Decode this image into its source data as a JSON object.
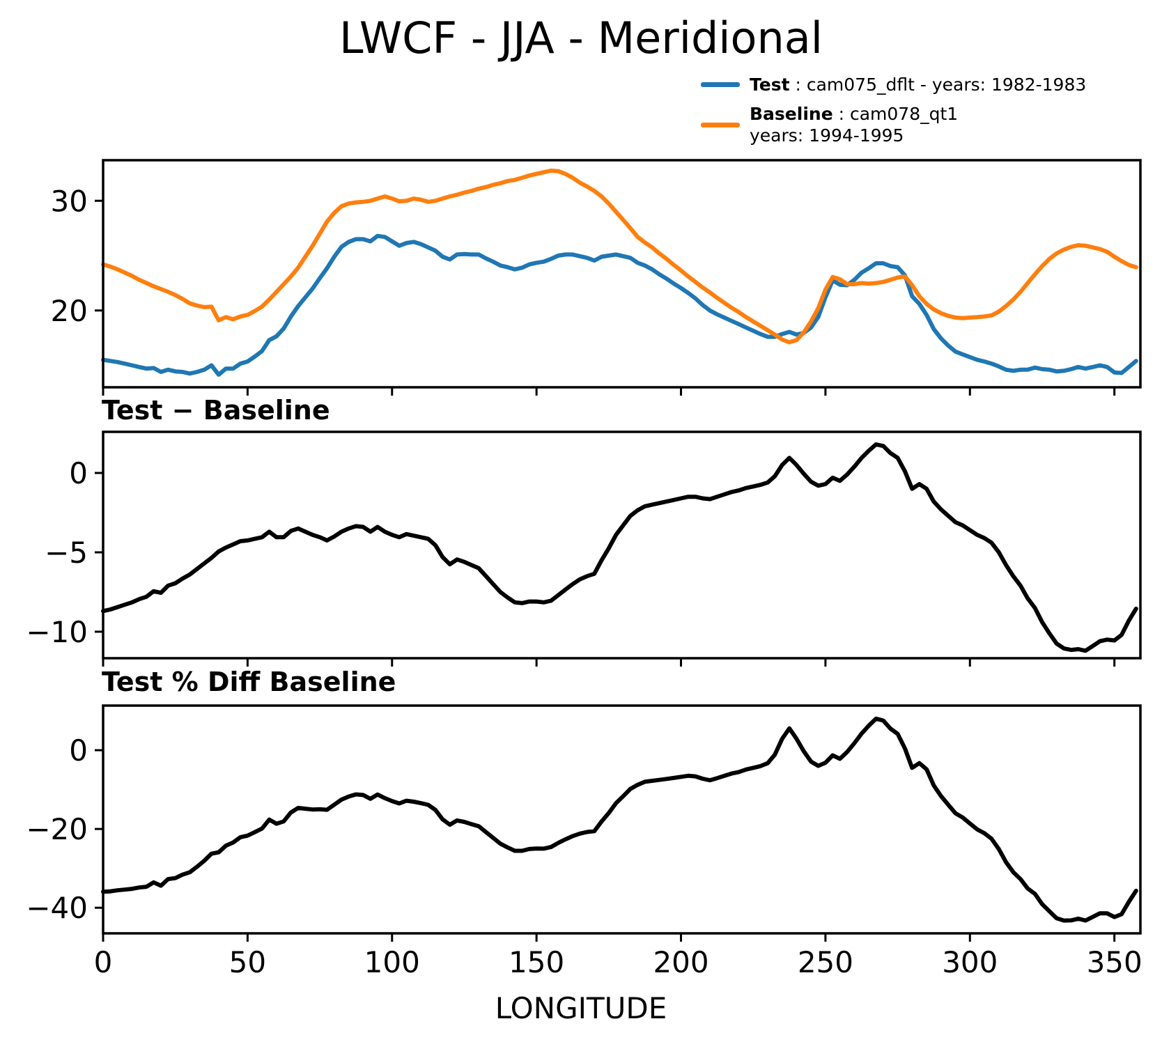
{
  "legend": {
    "entries": [
      {
        "name": "Test",
        "sep": " : ",
        "desc": "cam075_dflt - years: 1982-1983",
        "desc2": "",
        "color": "#1f77b4"
      },
      {
        "name": "Baseline",
        "sep": " : ",
        "desc": "cam078_qt1",
        "desc2": "years: 1994-1995",
        "color": "#ff7f0e"
      }
    ]
  },
  "chart_data": {
    "type": "line",
    "title": "LWCF - JJA - Meridional",
    "xlabel": "LONGITUDE",
    "grid": false,
    "legend_position": "top-right, outside axes",
    "xlim": [
      0,
      359
    ],
    "x_ticks": [
      0,
      50,
      100,
      150,
      200,
      250,
      300,
      350
    ],
    "x_tick_labels": [
      "0",
      "50",
      "100",
      "150",
      "200",
      "250",
      "300",
      "350"
    ],
    "x": [
      0,
      2.5,
      5,
      7.5,
      10,
      12.5,
      15,
      17.5,
      20,
      22.5,
      25,
      27.5,
      30,
      32.5,
      35,
      37.5,
      40,
      42.5,
      45,
      47.5,
      50,
      52.5,
      55,
      57.5,
      60,
      62.5,
      65,
      67.5,
      70,
      72.5,
      75,
      77.5,
      80,
      82.5,
      85,
      87.5,
      90,
      92.5,
      95,
      97.5,
      100,
      102.5,
      105,
      107.5,
      110,
      112.5,
      115,
      117.5,
      120,
      122.5,
      125,
      127.5,
      130,
      132.5,
      135,
      137.5,
      140,
      142.5,
      145,
      147.5,
      150,
      152.5,
      155,
      157.5,
      160,
      162.5,
      165,
      167.5,
      170,
      172.5,
      175,
      177.5,
      180,
      182.5,
      185,
      187.5,
      190,
      192.5,
      195,
      197.5,
      200,
      202.5,
      205,
      207.5,
      210,
      212.5,
      215,
      217.5,
      220,
      222.5,
      225,
      227.5,
      230,
      232.5,
      235,
      237.5,
      240,
      242.5,
      245,
      247.5,
      250,
      252.5,
      255,
      257.5,
      260,
      262.5,
      265,
      267.5,
      270,
      272.5,
      275,
      277.5,
      280,
      282.5,
      285,
      287.5,
      290,
      292.5,
      295,
      297.5,
      300,
      302.5,
      305,
      307.5,
      310,
      312.5,
      315,
      317.5,
      320,
      322.5,
      325,
      327.5,
      330,
      332.5,
      335,
      337.5,
      340,
      342.5,
      345,
      347.5,
      350,
      352.5,
      355,
      357.5
    ],
    "series": [
      {
        "name": "Test",
        "label": "cam075_dflt - years: 1982-1983",
        "color": "#1f77b4",
        "values": [
          15.5,
          15.4,
          15.3,
          15.15,
          15.0,
          14.85,
          14.7,
          14.75,
          14.4,
          14.6,
          14.45,
          14.4,
          14.25,
          14.4,
          14.6,
          15.0,
          14.15,
          14.7,
          14.7,
          15.15,
          15.35,
          15.8,
          16.3,
          17.3,
          17.65,
          18.35,
          19.45,
          20.4,
          21.2,
          22.0,
          22.95,
          23.85,
          24.9,
          25.8,
          26.25,
          26.5,
          26.5,
          26.3,
          26.8,
          26.7,
          26.3,
          25.9,
          26.15,
          26.25,
          26.05,
          25.75,
          25.45,
          24.9,
          24.65,
          25.1,
          25.15,
          25.1,
          25.1,
          24.75,
          24.45,
          24.1,
          23.95,
          23.75,
          23.9,
          24.2,
          24.35,
          24.45,
          24.7,
          25.0,
          25.1,
          25.1,
          24.95,
          24.8,
          24.55,
          24.9,
          25.0,
          25.1,
          24.95,
          24.8,
          24.35,
          24.1,
          23.75,
          23.3,
          22.9,
          22.45,
          22.05,
          21.6,
          21.1,
          20.5,
          20.0,
          19.65,
          19.35,
          19.05,
          18.75,
          18.45,
          18.15,
          17.85,
          17.6,
          17.6,
          17.85,
          18.05,
          17.8,
          17.95,
          18.45,
          19.4,
          21.2,
          22.75,
          22.35,
          22.3,
          22.8,
          23.45,
          23.85,
          24.3,
          24.3,
          24.05,
          23.95,
          23.2,
          21.3,
          20.6,
          19.6,
          18.3,
          17.45,
          16.8,
          16.25,
          16.0,
          15.75,
          15.5,
          15.35,
          15.15,
          14.9,
          14.6,
          14.5,
          14.6,
          14.6,
          14.8,
          14.65,
          14.6,
          14.45,
          14.5,
          14.65,
          14.85,
          14.7,
          14.85,
          15.0,
          14.85,
          14.35,
          14.3,
          14.85,
          15.4
        ]
      },
      {
        "name": "Baseline",
        "label": "cam078_qt1 years: 1994-1995",
        "color": "#ff7f0e",
        "values": [
          24.2,
          24.0,
          23.75,
          23.45,
          23.15,
          22.8,
          22.5,
          22.2,
          21.95,
          21.7,
          21.4,
          21.05,
          20.65,
          20.45,
          20.3,
          20.35,
          19.1,
          19.4,
          19.2,
          19.45,
          19.6,
          19.95,
          20.35,
          21.0,
          21.7,
          22.4,
          23.1,
          23.9,
          24.9,
          25.9,
          27.0,
          28.1,
          28.9,
          29.5,
          29.75,
          29.85,
          29.9,
          30.0,
          30.2,
          30.4,
          30.2,
          29.95,
          30.0,
          30.2,
          30.1,
          29.9,
          30.0,
          30.2,
          30.4,
          30.55,
          30.75,
          30.9,
          31.1,
          31.25,
          31.45,
          31.6,
          31.8,
          31.9,
          32.1,
          32.3,
          32.45,
          32.6,
          32.75,
          32.7,
          32.45,
          32.1,
          31.65,
          31.3,
          30.9,
          30.4,
          29.75,
          29.0,
          28.25,
          27.5,
          26.7,
          26.2,
          25.75,
          25.2,
          24.7,
          24.15,
          23.65,
          23.1,
          22.6,
          22.1,
          21.65,
          21.15,
          20.7,
          20.25,
          19.85,
          19.4,
          19.0,
          18.6,
          18.2,
          17.8,
          17.35,
          17.1,
          17.3,
          18.0,
          19.0,
          20.2,
          21.9,
          23.05,
          22.85,
          22.4,
          22.4,
          22.5,
          22.45,
          22.5,
          22.6,
          22.8,
          23.0,
          23.1,
          22.3,
          21.3,
          20.6,
          20.1,
          19.75,
          19.5,
          19.35,
          19.3,
          19.35,
          19.4,
          19.45,
          19.55,
          19.9,
          20.4,
          21.0,
          21.7,
          22.5,
          23.3,
          24.05,
          24.7,
          25.2,
          25.55,
          25.8,
          25.95,
          25.9,
          25.75,
          25.6,
          25.35,
          24.9,
          24.5,
          24.15,
          23.95
        ]
      }
    ],
    "panels": [
      {
        "id": "main",
        "title": "",
        "ylim": [
          13.0,
          33.7
        ],
        "yticks": [
          30,
          20
        ],
        "ytick_labels": [
          "30",
          "20"
        ],
        "content": "Test and Baseline curves"
      },
      {
        "id": "diff",
        "title": "Test − Baseline",
        "ylim": [
          -11.67,
          2.59
        ],
        "yticks": [
          0,
          -5,
          -10
        ],
        "ytick_labels": [
          "0",
          "−5",
          "−10"
        ],
        "content": "computed: Test - Baseline"
      },
      {
        "id": "pct",
        "title": "Test % Diff Baseline",
        "ylim": [
          -46.5,
          11.33
        ],
        "yticks": [
          0,
          -20,
          -40
        ],
        "ytick_labels": [
          "0",
          "−20",
          "−40"
        ],
        "content": "computed: 100*(Test-Baseline)/Baseline"
      }
    ]
  }
}
